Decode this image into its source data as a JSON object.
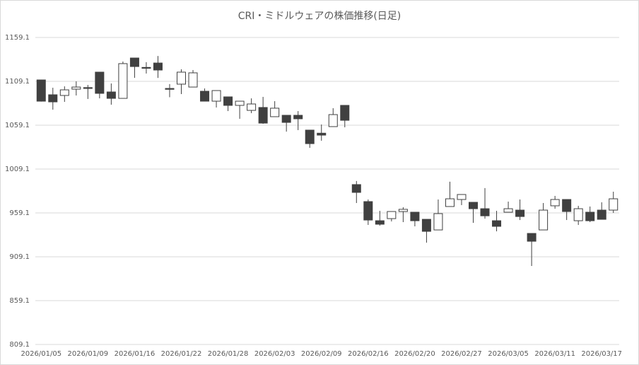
{
  "chart_data": {
    "type": "candlestick",
    "title": "CRI・ミドルウェアの株価推移(日足)",
    "categories": [
      "2026/01/05",
      null,
      null,
      null,
      "2026/01/09",
      null,
      null,
      null,
      "2026/01/16",
      null,
      null,
      null,
      "2026/01/22",
      null,
      null,
      null,
      "2026/01/28",
      null,
      null,
      null,
      "2026/02/03",
      null,
      null,
      null,
      "2026/02/09",
      null,
      null,
      null,
      "2026/02/16",
      null,
      null,
      null,
      "2026/02/20",
      null,
      null,
      null,
      "2026/02/27",
      null,
      null,
      null,
      "2026/03/05",
      null,
      null,
      null,
      "2026/03/11",
      null,
      null,
      null,
      "2026/03/17",
      null
    ],
    "open": [
      1110.7,
      1093.8,
      1093,
      1100.2,
      1102,
      1119.6,
      1097,
      1089.7,
      1135.7,
      1125,
      1130,
      1101,
      1105.9,
      1102.6,
      1097.8,
      1086.5,
      1091.4,
      1081.7,
      1076,
      1079.3,
      1068.8,
      1070.4,
      1070.4,
      1053.5,
      1050,
      1057.5,
      1081.7,
      991.4,
      972,
      950.2,
      952.6,
      960.7,
      959.9,
      951.8,
      939.7,
      966.4,
      974.4,
      971.2,
      963.9,
      950.2,
      959.9,
      962.3,
      935.7,
      939.7,
      967.2,
      974.4,
      950.2,
      959.9,
      962.3,
      962.3
    ],
    "high": [
      1111,
      1101.8,
      1103.4,
      1109.1,
      1105,
      1119.6,
      1106.7,
      1131.7,
      1135.7,
      1131,
      1138,
      1106,
      1122.8,
      1122,
      1101,
      1098.6,
      1091.4,
      1086.5,
      1089.7,
      1091.4,
      1086.5,
      1070.4,
      1075.2,
      1053.5,
      1059.9,
      1078.5,
      1081.7,
      995.5,
      974.4,
      961.5,
      960.7,
      965.6,
      959.9,
      951.8,
      974.4,
      994.7,
      980.1,
      971.2,
      987.4,
      961.5,
      972,
      974.4,
      935.7,
      970.4,
      978.5,
      974.4,
      967.2,
      966.4,
      971.2,
      983.3
    ],
    "low": [
      1086,
      1076.8,
      1085.7,
      1093,
      1089,
      1089.7,
      1082.5,
      1089.7,
      1113.1,
      1118,
      1113,
      1091,
      1094.6,
      1102.6,
      1086.5,
      1079.3,
      1075.2,
      1066.4,
      1072.8,
      1060.7,
      1068.8,
      1051.8,
      1053.5,
      1033.3,
      1041.4,
      1057.5,
      1056.7,
      970.4,
      945.4,
      944.6,
      949.4,
      948.6,
      943.8,
      925.2,
      939.7,
      966.4,
      968,
      947.8,
      952.6,
      938.1,
      959.9,
      951,
      898.6,
      939.7,
      963.9,
      951,
      945.4,
      948.6,
      951.8,
      959.1
    ],
    "close": [
      1086.5,
      1085.7,
      1099.4,
      1102.6,
      1101,
      1095.4,
      1089.7,
      1129.3,
      1126,
      1124,
      1122,
      1100,
      1119.6,
      1118.8,
      1086.5,
      1098.6,
      1081.7,
      1086.5,
      1083.3,
      1061.5,
      1078.5,
      1062.3,
      1066.4,
      1038.1,
      1047.8,
      1071.2,
      1064.7,
      982.5,
      951,
      946.2,
      960.7,
      963.2,
      950.2,
      938.1,
      958.3,
      975.2,
      980.1,
      963.9,
      955.8,
      943.8,
      963.9,
      955,
      926.8,
      962.3,
      974.4,
      960.7,
      963.9,
      950.2,
      951.8,
      975.2
    ],
    "up_color": "#ffffff",
    "down_color": "#404040",
    "edge_color": "#404040",
    "ylim": [
      809.1,
      1159.1
    ],
    "yticks": [
      809.1,
      859.1,
      909.1,
      959.1,
      1009.1,
      1059.1,
      1109.1,
      1159.1
    ],
    "grid": true
  }
}
